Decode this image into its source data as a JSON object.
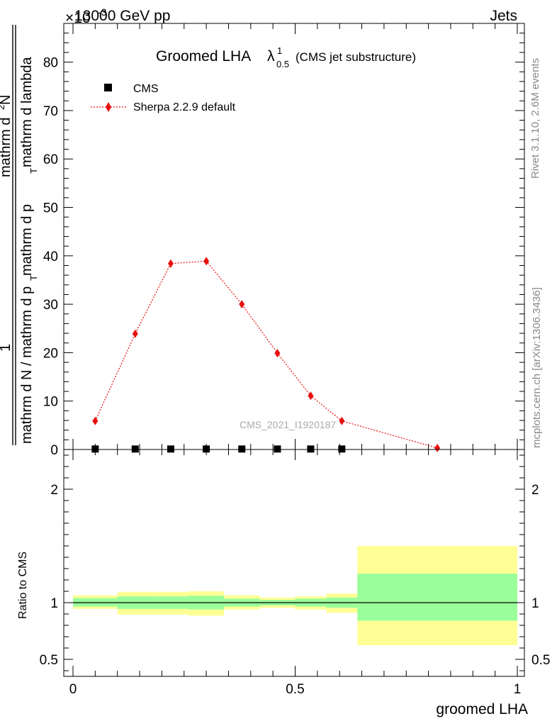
{
  "header": {
    "left": "13000 GeV pp",
    "right": "Jets",
    "exponent": "×10",
    "exponent_power": "-3"
  },
  "title": {
    "main": "Groomed LHA",
    "lambda": "λ",
    "sup": "1",
    "sub": "0.5",
    "extra": "(CMS jet substructure)"
  },
  "side_labels": {
    "rivet": "Rivet 3.1.10,  2.6M events",
    "mcplots": "mcplots.cern.ch [arXiv:1306.3436]"
  },
  "watermark": "CMS_2021_I1920187",
  "ylabel_top": {
    "one": "1",
    "denominator": "mathrm d N / mathrm d p",
    "den_sub": "T",
    "den_tail": " mathrm d p",
    "den_sub2": "T",
    "den_tail2": "mathrm d lambda",
    "numerator": "mathrm d",
    "num_sup": "2",
    "num_tail": "N"
  },
  "ylabel_ratio": "Ratio to CMS",
  "xlabel": "groomed LHA",
  "chart_data": [
    {
      "type": "scatter",
      "panel": "main",
      "xlim": [
        0,
        1
      ],
      "ylim": [
        0,
        88
      ],
      "y_scale_factor": "1e-3",
      "yticks": [
        0,
        10,
        20,
        30,
        40,
        50,
        60,
        70,
        80
      ],
      "ytick_labels": [
        "0",
        "10",
        "20",
        "30",
        "40",
        "50",
        "60",
        "70",
        "80"
      ],
      "legend_position": "top-left",
      "series": [
        {
          "name": "CMS",
          "marker": "square",
          "color": "#000000",
          "x": [
            0.05,
            0.14,
            0.22,
            0.3,
            0.38,
            0.46,
            0.535,
            0.605
          ],
          "y": [
            0.1,
            0.1,
            0.1,
            0.1,
            0.1,
            0.1,
            0.1,
            0.1
          ]
        },
        {
          "name": "Sherpa 2.2.9 default",
          "marker": "diamond",
          "line": "dotted",
          "color": "#e8100e",
          "x": [
            0.05,
            0.14,
            0.22,
            0.3,
            0.38,
            0.46,
            0.535,
            0.605,
            0.82
          ],
          "y": [
            5.9,
            23.9,
            38.4,
            38.9,
            30.0,
            19.9,
            11.1,
            5.9,
            0.3
          ]
        }
      ]
    },
    {
      "type": "area",
      "panel": "ratio",
      "xlim": [
        0,
        1
      ],
      "ylim": [
        0.35,
        2.35
      ],
      "yticks": [
        0.5,
        1,
        2
      ],
      "ytick_labels": [
        "0.5",
        "1",
        "2"
      ],
      "xticks": [
        0,
        0.5,
        1
      ],
      "xtick_labels": [
        "0",
        "0.5",
        "1"
      ],
      "bins": [
        [
          0.0,
          0.1
        ],
        [
          0.1,
          0.18
        ],
        [
          0.18,
          0.26
        ],
        [
          0.26,
          0.34
        ],
        [
          0.34,
          0.42
        ],
        [
          0.42,
          0.5
        ],
        [
          0.5,
          0.57
        ],
        [
          0.57,
          0.64
        ],
        [
          0.64,
          1.0
        ]
      ],
      "band_inner": {
        "name": "stat",
        "color": "#9aff9a",
        "low": [
          0.965,
          0.945,
          0.945,
          0.94,
          0.965,
          0.975,
          0.965,
          0.955,
          0.84
        ],
        "high": [
          1.04,
          1.055,
          1.055,
          1.06,
          1.035,
          1.025,
          1.035,
          1.045,
          1.255
        ]
      },
      "band_outer": {
        "name": "total",
        "color": "#ffff96",
        "low": [
          0.945,
          0.895,
          0.895,
          0.885,
          0.94,
          0.955,
          0.94,
          0.91,
          0.625
        ],
        "high": [
          1.065,
          1.095,
          1.095,
          1.1,
          1.065,
          1.045,
          1.055,
          1.08,
          1.5
        ]
      },
      "reference_line": 1
    }
  ]
}
